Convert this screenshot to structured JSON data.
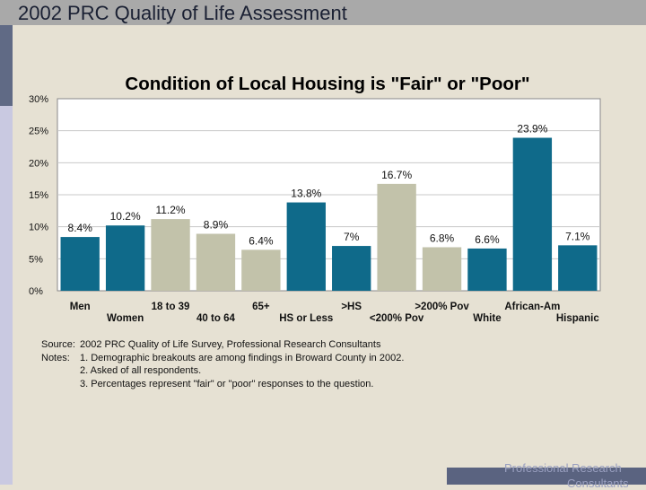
{
  "header": {
    "title": "2002 PRC Quality of Life Assessment"
  },
  "chart_data": {
    "type": "bar",
    "title": "Condition of Local Housing is \"Fair\" or \"Poor\"",
    "xlabel": "",
    "ylabel": "",
    "ylim": [
      0,
      30
    ],
    "y_ticks": [
      "0%",
      "5%",
      "10%",
      "15%",
      "20%",
      "25%",
      "30%"
    ],
    "categories": [
      "Men",
      "Women",
      "18 to 39",
      "40 to 64",
      "65+",
      "HS or Less",
      ">HS",
      "<200% Pov",
      ">200% Pov",
      "White",
      "African-Am",
      "Hispanic"
    ],
    "values": [
      8.4,
      10.2,
      11.2,
      8.9,
      6.4,
      13.8,
      7.0,
      16.7,
      6.8,
      6.6,
      23.9,
      7.1
    ],
    "data_labels": [
      "8.4%",
      "10.2%",
      "11.2%",
      "8.9%",
      "6.4%",
      "13.8%",
      "7%",
      "16.7%",
      "6.8%",
      "6.6%",
      "23.9%",
      "7.1%"
    ],
    "bar_colors": [
      "#0f6a8a",
      "#0f6a8a",
      "#c2c2aa",
      "#c2c2aa",
      "#c2c2aa",
      "#0f6a8a",
      "#0f6a8a",
      "#c2c2aa",
      "#c2c2aa",
      "#0f6a8a",
      "#0f6a8a",
      "#0f6a8a"
    ],
    "grid": true
  },
  "notes": {
    "source_label": "Source:",
    "source_text": "2002 PRC Quality of Life Survey, Professional Research Consultants",
    "notes_label": "Notes:",
    "note_1": "1. Demographic breakouts are among findings in Broward County in 2002.",
    "note_2": "2. Asked of all respondents.",
    "note_3": "3.  Percentages represent \"fair\" or \"poor\" responses to the question."
  },
  "footer": {
    "line_1": "Professional Research",
    "line_2": "Consultants"
  }
}
